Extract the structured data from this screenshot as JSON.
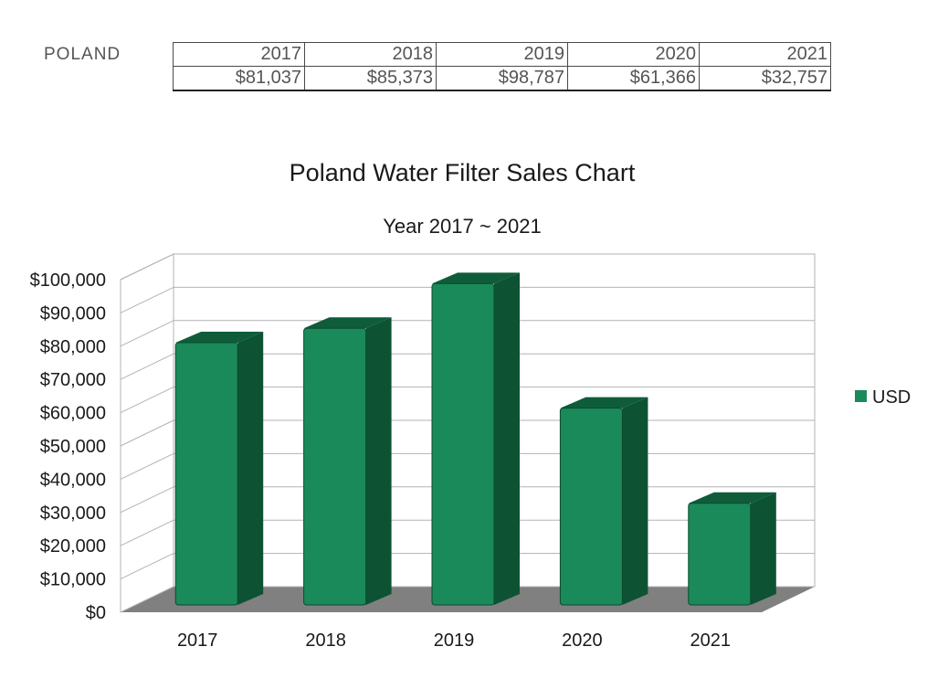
{
  "table": {
    "row_label": "POLAND",
    "years": [
      "2017",
      "2018",
      "2019",
      "2020",
      "2021"
    ],
    "values": [
      "$81,037",
      "$85,373",
      "$98,787",
      "$61,366",
      "$32,757"
    ]
  },
  "chart_data": {
    "type": "bar",
    "style": "3d",
    "title": "Poland Water Filter Sales Chart",
    "subtitle": "Year 2017 ~ 2021",
    "categories": [
      "2017",
      "2018",
      "2019",
      "2020",
      "2021"
    ],
    "series": [
      {
        "name": "USD",
        "values": [
          81037,
          85373,
          98787,
          61366,
          32757
        ],
        "color": "#1a8a5a"
      }
    ],
    "xlabel": "",
    "ylabel": "",
    "ylim": [
      0,
      100000
    ],
    "y_ticks": [
      "$0",
      "$10,000",
      "$20,000",
      "$30,000",
      "$40,000",
      "$50,000",
      "$60,000",
      "$70,000",
      "$80,000",
      "$90,000",
      "$100,000"
    ],
    "grid": true,
    "legend": "right"
  }
}
